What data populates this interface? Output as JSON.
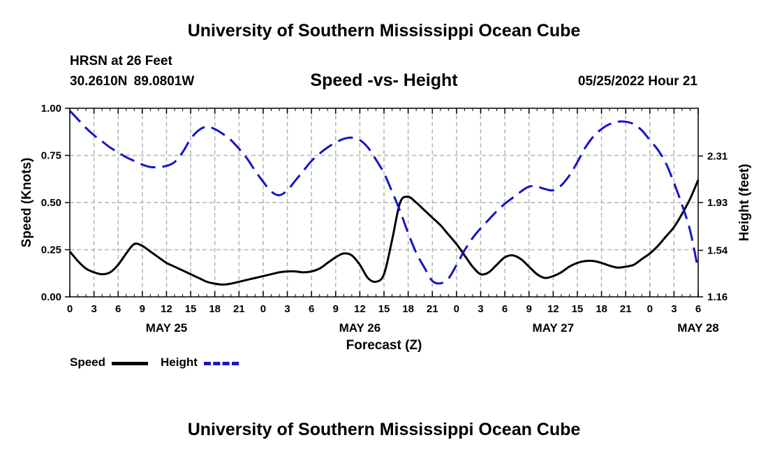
{
  "page": {
    "title_top": "University of Southern Mississippi Ocean Cube",
    "title_bottom": "University of Southern Mississippi Ocean Cube",
    "station": "HRSN at 26 Feet",
    "coords": "30.2610N  89.0801W",
    "chart_title": "Speed -vs- Height",
    "datetime": "05/25/2022 Hour 21",
    "legend_speed": "Speed",
    "legend_height": "Height"
  },
  "colors": {
    "speed": "#000000",
    "height": "#1414c8",
    "grid": "#b4b4b4"
  },
  "chart_data": {
    "type": "line",
    "title": "Speed -vs- Height",
    "xlabel": "Forecast (Z)",
    "ylabel_left": "Speed (Knots)",
    "ylabel_right": "Height (feet)",
    "x_unit": "hours since 2022-05-25 00Z",
    "xlim": [
      0,
      78
    ],
    "ylim_left": [
      0,
      1.0
    ],
    "ylim_right": [
      1.16,
      2.7
    ],
    "x_ticks": [
      0,
      3,
      6,
      9,
      12,
      15,
      18,
      21,
      24,
      27,
      30,
      33,
      36,
      39,
      42,
      45,
      48,
      51,
      54,
      57,
      60,
      63,
      66,
      69,
      72,
      75,
      78
    ],
    "x_tick_labels": [
      "0",
      "3",
      "6",
      "9",
      "12",
      "15",
      "18",
      "21",
      "0",
      "3",
      "6",
      "9",
      "12",
      "15",
      "18",
      "21",
      "0",
      "3",
      "6",
      "9",
      "12",
      "15",
      "18",
      "21",
      "0",
      "3",
      "6"
    ],
    "date_labels": [
      {
        "x": 12,
        "label": "MAY 25"
      },
      {
        "x": 36,
        "label": "MAY 26"
      },
      {
        "x": 60,
        "label": "MAY 27"
      },
      {
        "x": 78,
        "label": "MAY 28"
      }
    ],
    "y_left_ticks": [
      0,
      0.25,
      0.5,
      0.75,
      1.0
    ],
    "y_left_tick_labels": [
      "0.00",
      "0.25",
      "0.50",
      "0.75",
      "1.00"
    ],
    "y_right_ticks": [
      1.16,
      1.54,
      1.93,
      2.31
    ],
    "y_right_tick_labels": [
      "1.16",
      "1.54",
      "1.93",
      "2.31"
    ],
    "series": [
      {
        "name": "Speed",
        "axis": "left",
        "style": "solid",
        "x": [
          0,
          1,
          2,
          3,
          4,
          5,
          6,
          7,
          8,
          9,
          10,
          11,
          12,
          13,
          14,
          15,
          16,
          17,
          18,
          19,
          20,
          21,
          22,
          23,
          24,
          25,
          26,
          27,
          28,
          29,
          30,
          31,
          32,
          33,
          34,
          35,
          36,
          37,
          38,
          39,
          40,
          41,
          42,
          43,
          44,
          45,
          46,
          47,
          48,
          49,
          50,
          51,
          52,
          53,
          54,
          55,
          56,
          57,
          58,
          59,
          60,
          61,
          62,
          63,
          64,
          65,
          66,
          67,
          68,
          69,
          70,
          71,
          72,
          73,
          74,
          75,
          76,
          77,
          78
        ],
        "values": [
          0.24,
          0.19,
          0.15,
          0.13,
          0.12,
          0.13,
          0.17,
          0.23,
          0.28,
          0.27,
          0.24,
          0.21,
          0.18,
          0.16,
          0.14,
          0.12,
          0.1,
          0.08,
          0.07,
          0.065,
          0.07,
          0.08,
          0.09,
          0.1,
          0.11,
          0.12,
          0.13,
          0.135,
          0.135,
          0.13,
          0.135,
          0.15,
          0.18,
          0.21,
          0.23,
          0.22,
          0.17,
          0.1,
          0.08,
          0.12,
          0.3,
          0.5,
          0.53,
          0.5,
          0.46,
          0.42,
          0.38,
          0.33,
          0.28,
          0.22,
          0.16,
          0.12,
          0.13,
          0.17,
          0.21,
          0.22,
          0.2,
          0.16,
          0.12,
          0.1,
          0.11,
          0.13,
          0.16,
          0.18,
          0.19,
          0.19,
          0.18,
          0.165,
          0.155,
          0.16,
          0.17,
          0.2,
          0.23,
          0.27,
          0.32,
          0.37,
          0.44,
          0.52,
          0.62
        ]
      },
      {
        "name": "Height",
        "axis": "right",
        "style": "dashed",
        "x": [
          0,
          1,
          2,
          3,
          4,
          5,
          6,
          7,
          8,
          9,
          10,
          11,
          12,
          13,
          14,
          15,
          16,
          17,
          18,
          19,
          20,
          21,
          22,
          23,
          24,
          25,
          26,
          27,
          28,
          29,
          30,
          31,
          32,
          33,
          34,
          35,
          36,
          37,
          38,
          39,
          40,
          41,
          42,
          43,
          44,
          45,
          46,
          47,
          48,
          49,
          50,
          51,
          52,
          53,
          54,
          55,
          56,
          57,
          58,
          59,
          60,
          61,
          62,
          63,
          64,
          65,
          66,
          67,
          68,
          69,
          70,
          71,
          72,
          73,
          74,
          75,
          76,
          77,
          78
        ],
        "values": [
          2.68,
          2.61,
          2.54,
          2.48,
          2.43,
          2.38,
          2.34,
          2.3,
          2.27,
          2.24,
          2.22,
          2.22,
          2.23,
          2.26,
          2.34,
          2.45,
          2.52,
          2.55,
          2.53,
          2.49,
          2.44,
          2.37,
          2.29,
          2.19,
          2.1,
          2.02,
          1.99,
          2.03,
          2.11,
          2.19,
          2.27,
          2.33,
          2.38,
          2.42,
          2.45,
          2.46,
          2.44,
          2.38,
          2.28,
          2.17,
          2.02,
          1.86,
          1.68,
          1.52,
          1.4,
          1.29,
          1.27,
          1.31,
          1.42,
          1.54,
          1.64,
          1.72,
          1.79,
          1.86,
          1.92,
          1.97,
          2.02,
          2.06,
          2.06,
          2.04,
          2.03,
          2.07,
          2.15,
          2.26,
          2.38,
          2.47,
          2.53,
          2.57,
          2.59,
          2.59,
          2.57,
          2.52,
          2.44,
          2.36,
          2.25,
          2.09,
          1.91,
          1.7,
          1.38
        ]
      }
    ]
  }
}
